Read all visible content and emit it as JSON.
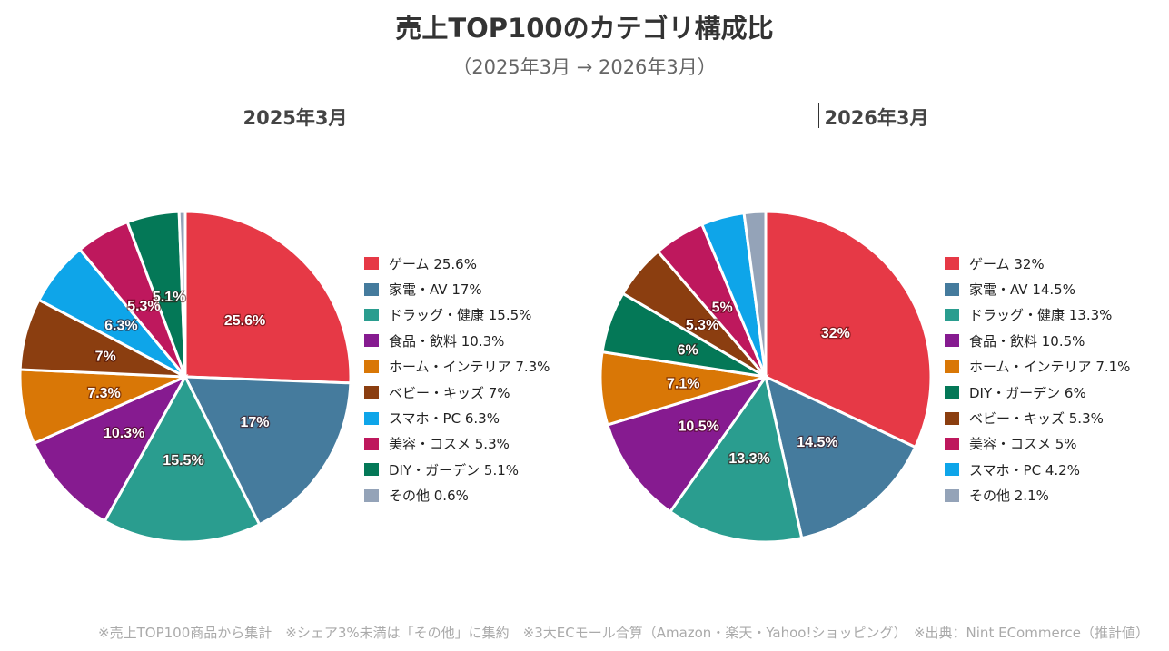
{
  "title": "売上TOP100のカテゴリ構成比",
  "subtitle": "（2025年3月 → 2026年3月）",
  "footer": "※売上TOP100商品から集計　※シェア3%未満は「その他」に集約　※3大ECモール合算（Amazon・楽天・Yahoo!ショッピング）　※出典：Nint ECommerce（推計値）",
  "chart_data": [
    {
      "type": "pie",
      "title": "2025年3月",
      "legend": "right",
      "categories": [
        "ゲーム",
        "家電・AV",
        "ドラッグ・健康",
        "食品・飲料",
        "ホーム・インテリア",
        "ベビー・キッズ",
        "スマホ・PC",
        "美容・コスメ",
        "DIY・ガーデン",
        "その他"
      ],
      "values": [
        25.6,
        17,
        15.5,
        10.3,
        7.3,
        7,
        6.3,
        5.3,
        5.1,
        0.6
      ],
      "colors": [
        "#e63946",
        "#457b9d",
        "#2a9d8f",
        "#861b90",
        "#d97706",
        "#8b3e10",
        "#0ea5e9",
        "#be185d",
        "#047857",
        "#94a3b8"
      ],
      "labels": [
        "25.6%",
        "17%",
        "15.5%",
        "10.3%",
        "7.3%",
        "7%",
        "6.3%",
        "5.3%",
        "5.1%",
        ""
      ],
      "legend_labels": [
        "ゲーム 25.6%",
        "家電・AV 17%",
        "ドラッグ・健康 15.5%",
        "食品・飲料 10.3%",
        "ホーム・インテリア 7.3%",
        "ベビー・キッズ 7%",
        "スマホ・PC 6.3%",
        "美容・コスメ 5.3%",
        "DIY・ガーデン 5.1%",
        "その他 0.6%"
      ]
    },
    {
      "type": "pie",
      "title": "2026年3月",
      "legend": "right",
      "categories": [
        "ゲーム",
        "家電・AV",
        "ドラッグ・健康",
        "食品・飲料",
        "ホーム・インテリア",
        "DIY・ガーデン",
        "ベビー・キッズ",
        "美容・コスメ",
        "スマホ・PC",
        "その他"
      ],
      "values": [
        32,
        14.5,
        13.3,
        10.5,
        7.1,
        6,
        5.3,
        5,
        4.2,
        2.1
      ],
      "colors": [
        "#e63946",
        "#457b9d",
        "#2a9d8f",
        "#861b90",
        "#d97706",
        "#047857",
        "#8b3e10",
        "#be185d",
        "#0ea5e9",
        "#94a3b8"
      ],
      "labels": [
        "32%",
        "14.5%",
        "13.3%",
        "10.5%",
        "7.1%",
        "6%",
        "5.3%",
        "5%",
        "",
        ""
      ],
      "legend_labels": [
        "ゲーム 32%",
        "家電・AV 14.5%",
        "ドラッグ・健康 13.3%",
        "食品・飲料 10.5%",
        "ホーム・インテリア 7.1%",
        "DIY・ガーデン 6%",
        "ベビー・キッズ 5.3%",
        "美容・コスメ 5%",
        "スマホ・PC 4.2%",
        "その他 2.1%"
      ]
    }
  ]
}
